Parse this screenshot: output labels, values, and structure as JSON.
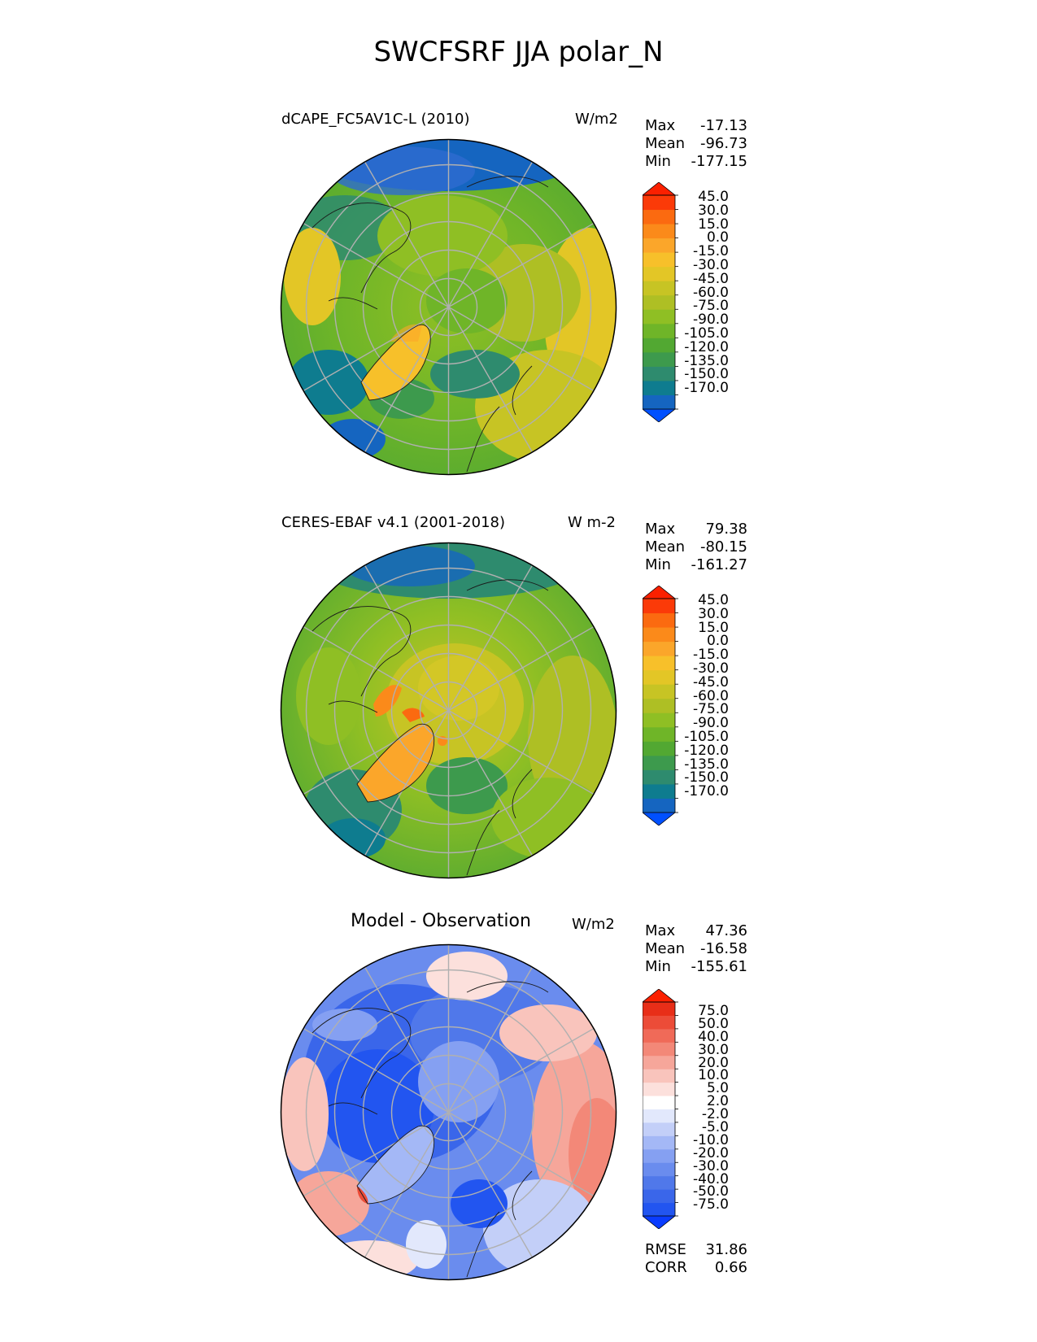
{
  "figure": {
    "title": "SWCFSRF JJA polar_N"
  },
  "panels": [
    {
      "title": "dCAPE_FC5AV1C-L (2010)",
      "units": "W/m2",
      "stats": {
        "max_label": "Max",
        "max": "-17.13",
        "mean_label": "Mean",
        "mean": "-96.73",
        "min_label": "Min",
        "min": "-177.15"
      },
      "colorbar_levels": [
        "45.0",
        "30.0",
        "15.0",
        "0.0",
        "-15.0",
        "-30.0",
        "-45.0",
        "-60.0",
        "-75.0",
        "-90.0",
        "-105.0",
        "-120.0",
        "-135.0",
        "-150.0",
        "-170.0"
      ],
      "colorbar_colors": [
        "#0050ff",
        "#1565c0",
        "#0e7c8f",
        "#2e8b6e",
        "#3d9a4d",
        "#52a832",
        "#6fb528",
        "#8fbf24",
        "#aebf24",
        "#c7c424",
        "#e3c626",
        "#f7c02a",
        "#fba62a",
        "#fb8a1a",
        "#fb6a10",
        "#fb3a08",
        "#fb2000"
      ]
    },
    {
      "title": "CERES-EBAF v4.1 (2001-2018)",
      "units": "W m-2",
      "stats": {
        "max_label": "Max",
        "max": "79.38",
        "mean_label": "Mean",
        "mean": "-80.15",
        "min_label": "Min",
        "min": "-161.27"
      },
      "colorbar_levels": [
        "45.0",
        "30.0",
        "15.0",
        "0.0",
        "-15.0",
        "-30.0",
        "-45.0",
        "-60.0",
        "-75.0",
        "-90.0",
        "-105.0",
        "-120.0",
        "-135.0",
        "-150.0",
        "-170.0"
      ],
      "colorbar_colors": [
        "#0050ff",
        "#1565c0",
        "#0e7c8f",
        "#2e8b6e",
        "#3d9a4d",
        "#52a832",
        "#6fb528",
        "#8fbf24",
        "#aebf24",
        "#c7c424",
        "#e3c626",
        "#f7c02a",
        "#fba62a",
        "#fb8a1a",
        "#fb6a10",
        "#fb3a08",
        "#fb2000"
      ]
    },
    {
      "title": "Model - Observation",
      "units": "W/m2",
      "stats": {
        "max_label": "Max",
        "max": "47.36",
        "mean_label": "Mean",
        "mean": "-16.58",
        "min_label": "Min",
        "min": "-155.61"
      },
      "colorbar_levels": [
        "75.0",
        "50.0",
        "40.0",
        "30.0",
        "20.0",
        "10.0",
        "5.0",
        "2.0",
        "-2.0",
        "-5.0",
        "-10.0",
        "-20.0",
        "-30.0",
        "-40.0",
        "-50.0",
        "-75.0"
      ],
      "colorbar_colors": [
        "#0a3cff",
        "#2255f0",
        "#3a66ea",
        "#5078ea",
        "#6a8cee",
        "#85a0f2",
        "#a4b8f6",
        "#c3cff8",
        "#e2e8fc",
        "#ffffff",
        "#fce0dc",
        "#f9c4bc",
        "#f6a69a",
        "#f38878",
        "#f06a58",
        "#ec4c38",
        "#e82e18",
        "#fb2000"
      ],
      "metrics": {
        "rmse_label": "RMSE",
        "rmse": "31.86",
        "corr_label": "CORR",
        "corr": "0.66"
      }
    }
  ]
}
